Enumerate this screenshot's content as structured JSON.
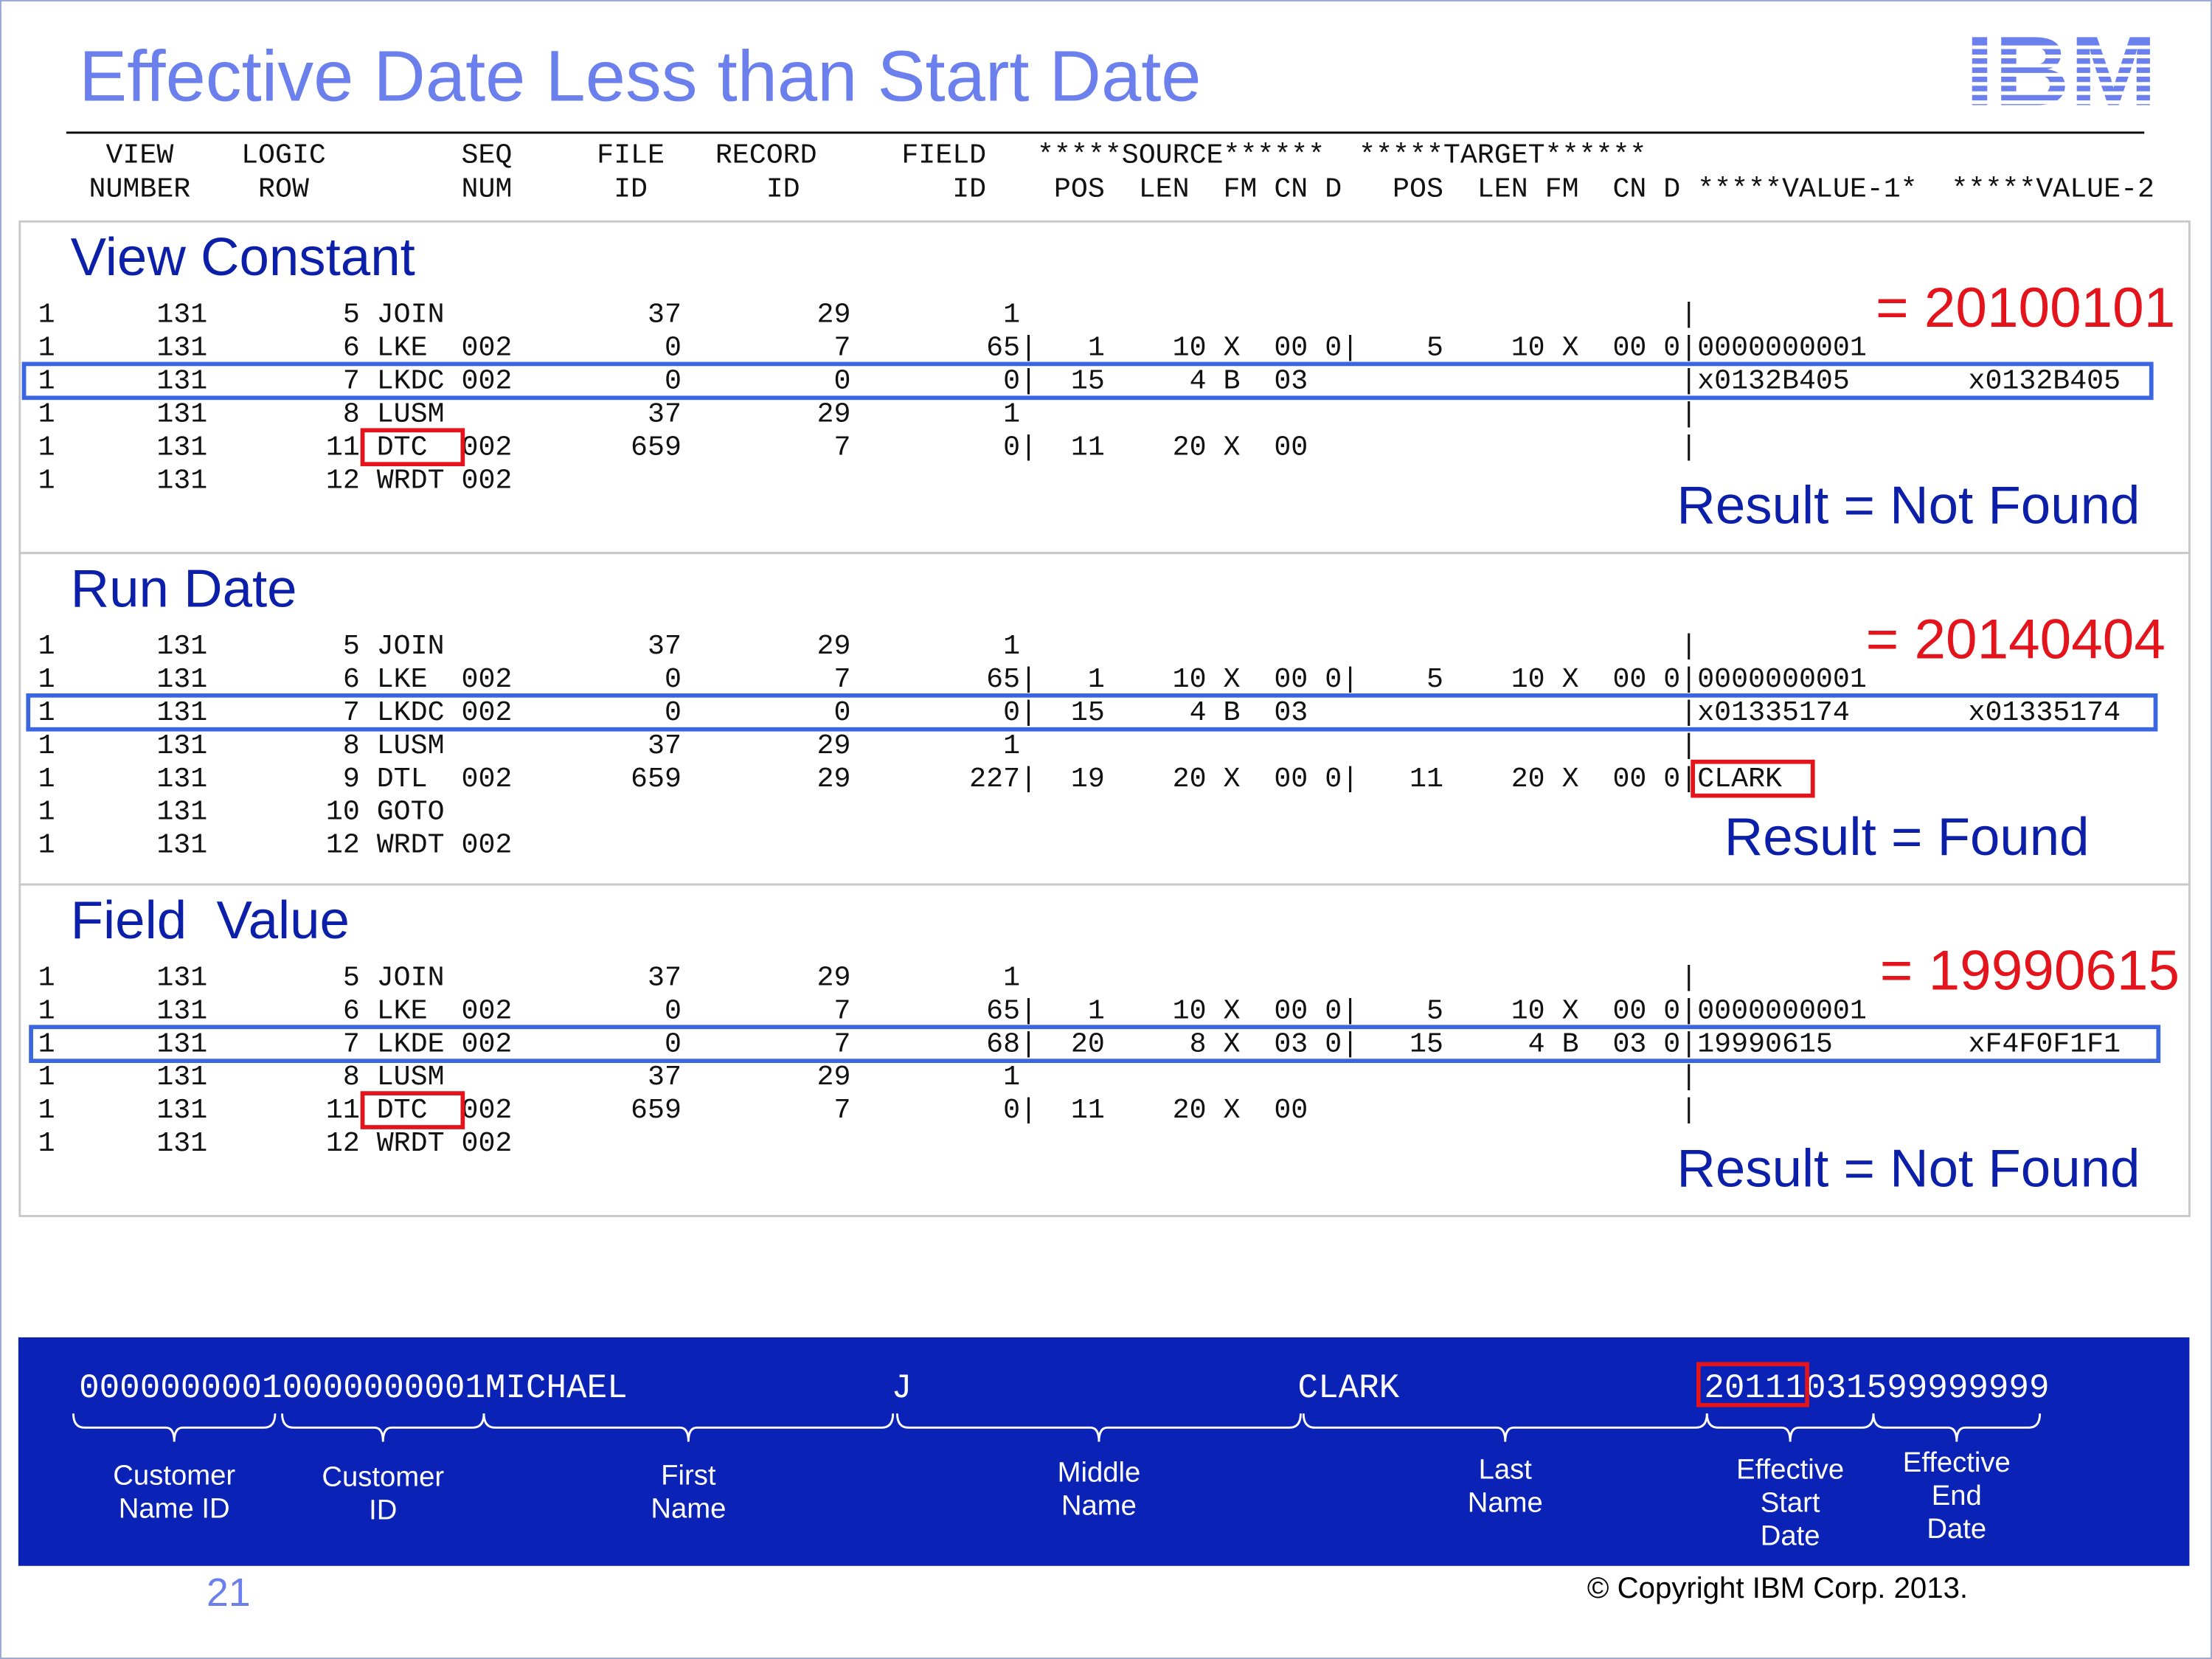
{
  "title": "Effective Date Less than Start Date",
  "logo": "IBM",
  "header_lines": [
    "    VIEW    LOGIC        SEQ     FILE   RECORD     FIELD   *****SOURCE******  *****TARGET******",
    "   NUMBER    ROW         NUM      ID       ID         ID    POS  LEN  FM CN D   POS  LEN FM  CN D *****VALUE-1*  *****VALUE-2"
  ],
  "sections": [
    {
      "title": "View Constant",
      "rows": [
        "1      131        5 JOIN            37        29         1                                       |",
        "1      131        6 LKE  002         0         7        65|   1    10 X  00 0|    5    10 X  00 0|0000000001",
        "1      131        7 LKDC 002         0         0         0|  15     4 B  03                      |x0132B405       x0132B405",
        "1      131        8 LUSM            37        29         1                                       |",
        "1      131       11 DTC  002       659         7         0|  11    20 X  00                      |",
        "1      131       12 WRDT 002"
      ],
      "annotation": "= 20100101",
      "result": "Result = Not Found"
    },
    {
      "title": "Run Date",
      "rows": [
        "1      131        5 JOIN            37        29         1                                       |",
        "1      131        6 LKE  002         0         7        65|   1    10 X  00 0|    5    10 X  00 0|0000000001",
        "1      131        7 LKDC 002         0         0         0|  15     4 B  03                      |x01335174       x01335174",
        "1      131        8 LUSM            37        29         1                                       |",
        "1      131        9 DTL  002       659        29       227|  19    20 X  00 0|   11    20 X  00 0|CLARK",
        "1      131       10 GOTO",
        "1      131       12 WRDT 002"
      ],
      "annotation": "= 20140404",
      "result": "Result = Found"
    },
    {
      "title": "Field  Value",
      "rows": [
        "1      131        5 JOIN            37        29         1                                       |",
        "1      131        6 LKE  002         0         7        65|   1    10 X  00 0|    5    10 X  00 0|0000000001",
        "1      131        7 LKDE 002         0         7        68|  20     8 X  03 0|   15     4 B  03 0|19990615        xF4F0F1F1",
        "1      131        8 LUSM            37        29         1                                       |",
        "1      131       11 DTC  002       659         7         0|  11    20 X  00                      |",
        "1      131       12 WRDT 002"
      ],
      "annotation": "= 19990615",
      "result": "Result = Not Found"
    }
  ],
  "record": {
    "text": "00000000010000000001MICHAEL             J                   CLARK               20111031599999999",
    "fields": [
      {
        "label": [
          "Customer",
          "Name ID"
        ]
      },
      {
        "label": [
          "Customer",
          "ID"
        ]
      },
      {
        "label": [
          "First",
          "Name"
        ]
      },
      {
        "label": [
          "Middle",
          "Name"
        ]
      },
      {
        "label": [
          "Last",
          "Name"
        ]
      },
      {
        "label": [
          "Effective",
          "Start",
          "Date"
        ]
      },
      {
        "label": [
          "Effective",
          "End",
          "Date"
        ]
      }
    ]
  },
  "page_number": "21",
  "copyright": "© Copyright IBM Corp. 2013."
}
